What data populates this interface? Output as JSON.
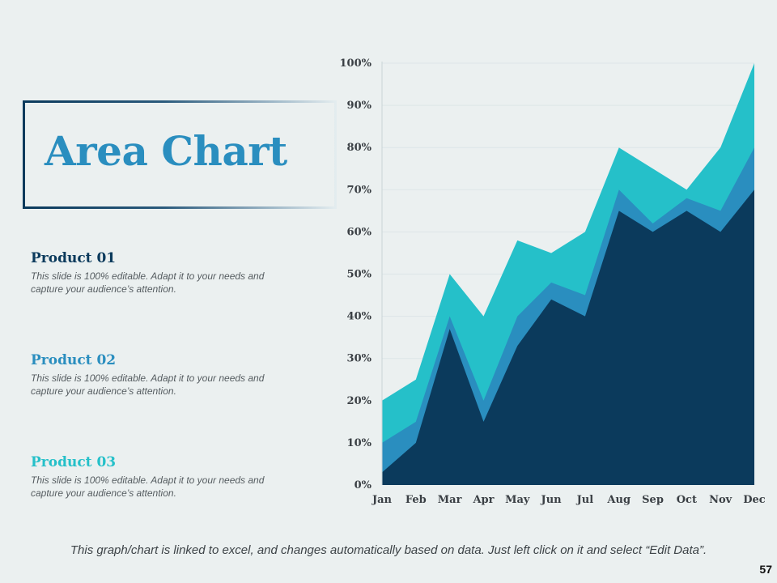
{
  "slide": {
    "title": "Area Chart",
    "footnote": "This graph/chart is linked to excel, and changes automatically based on data. Just left click on it and select “Edit Data”.",
    "page_number": "57"
  },
  "products": [
    {
      "name": "Product 01",
      "description": "This slide is 100% editable. Adapt it to your needs and capture your audience’s attention.",
      "color": "#0b3a5c"
    },
    {
      "name": "Product 02",
      "description": "This slide is 100% editable. Adapt it to your needs and capture your audience’s attention.",
      "color": "#2a8ebf"
    },
    {
      "name": "Product 03",
      "description": "This slide is 100% editable. Adapt it to your needs and capture your audience’s attention.",
      "color": "#25c0c9"
    }
  ],
  "chart_data": {
    "type": "area",
    "title": "",
    "xlabel": "",
    "ylabel": "",
    "categories": [
      "Jan",
      "Feb",
      "Mar",
      "Apr",
      "May",
      "Jun",
      "Jul",
      "Aug",
      "Sep",
      "Oct",
      "Nov",
      "Dec"
    ],
    "y_tick_labels": [
      "0%",
      "10%",
      "20%",
      "30%",
      "40%",
      "50%",
      "60%",
      "70%",
      "80%",
      "90%",
      "100%"
    ],
    "ylim": [
      0,
      100
    ],
    "grid": true,
    "legend": "none",
    "series": [
      {
        "name": "Product 03",
        "color": "#25c0c9",
        "values": [
          20,
          25,
          50,
          40,
          58,
          55,
          60,
          80,
          75,
          70,
          80,
          100
        ]
      },
      {
        "name": "Product 02",
        "color": "#2a8ebf",
        "values": [
          10,
          15,
          40,
          20,
          40,
          48,
          45,
          70,
          62,
          68,
          65,
          80
        ]
      },
      {
        "name": "Product 01",
        "color": "#0b3a5c",
        "values": [
          3,
          10,
          37,
          15,
          33,
          44,
          40,
          65,
          60,
          65,
          60,
          70
        ]
      }
    ]
  }
}
